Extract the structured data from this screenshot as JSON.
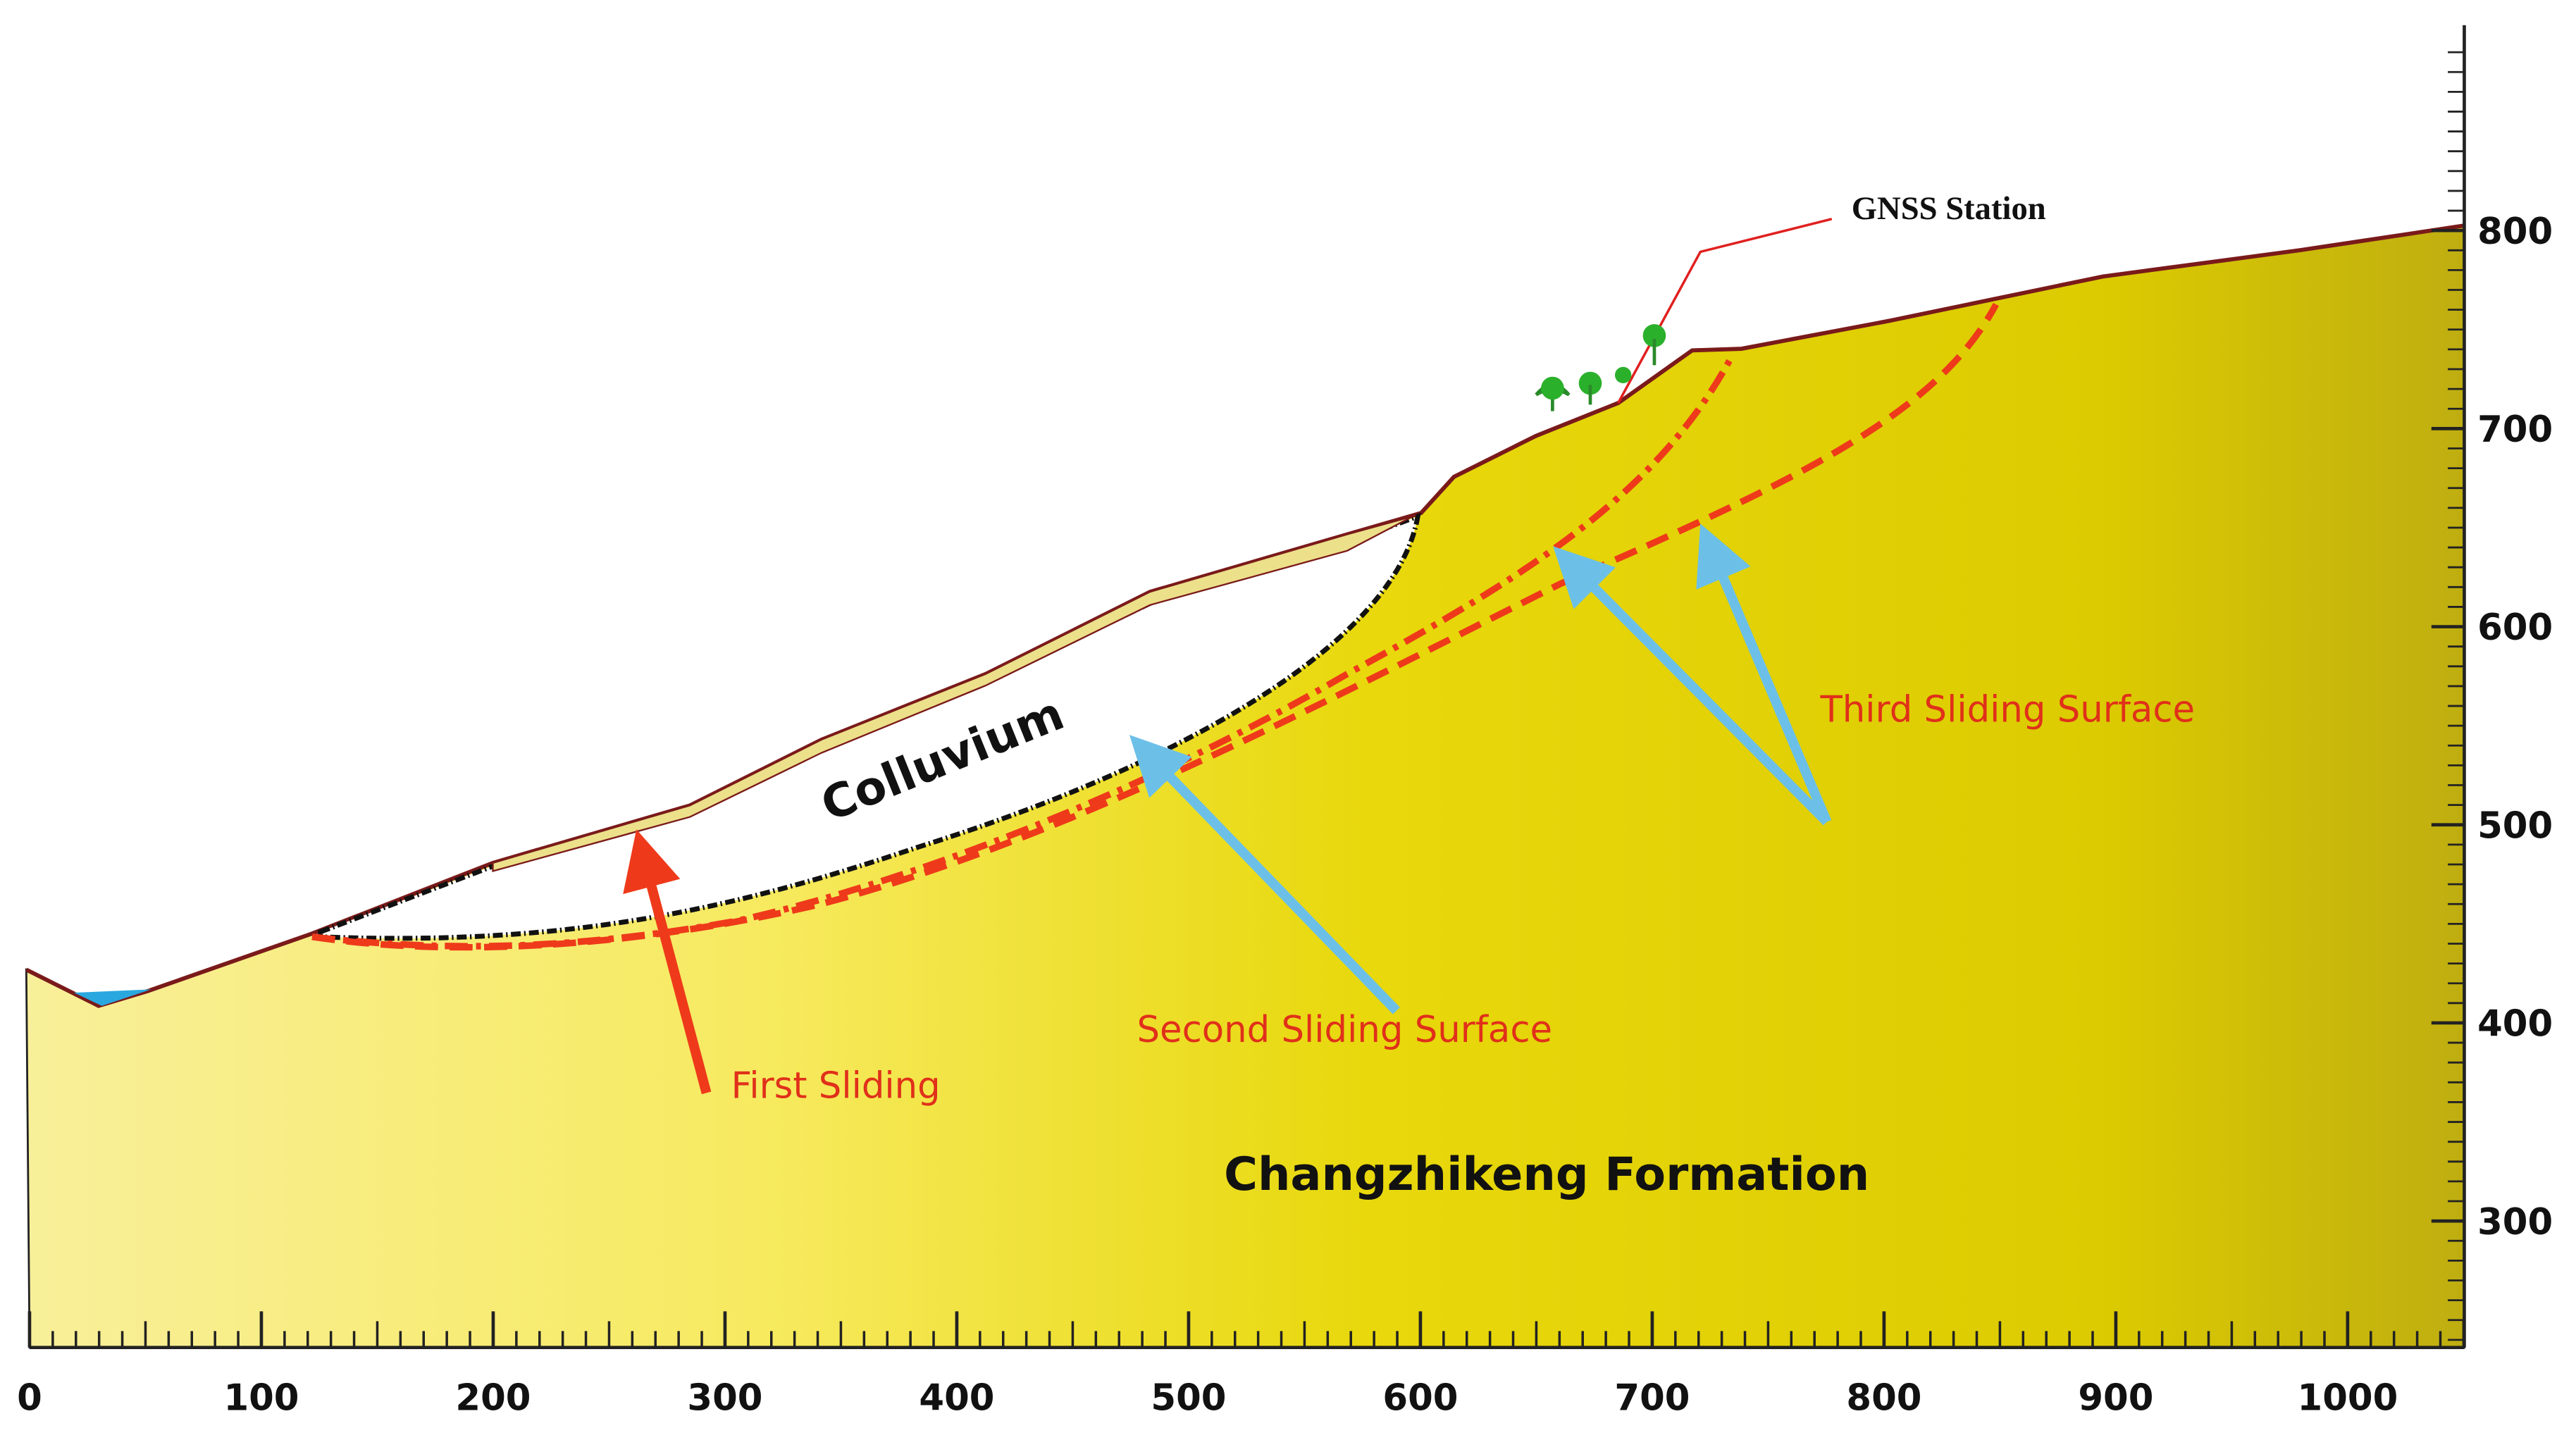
{
  "x_axis": {
    "ticks": [
      0,
      100,
      200,
      300,
      400,
      500,
      600,
      700,
      800,
      900,
      1000
    ]
  },
  "y_axis": {
    "ticks": [
      300,
      400,
      500,
      600,
      700,
      800
    ]
  },
  "labels": {
    "gnss": "GNSS Station",
    "colluvium": "Colluvium",
    "first": "First Sliding",
    "second": "Second Sliding Surface",
    "third": "Third Sliding Surface",
    "formation": "Changzhikeng Formation"
  }
}
